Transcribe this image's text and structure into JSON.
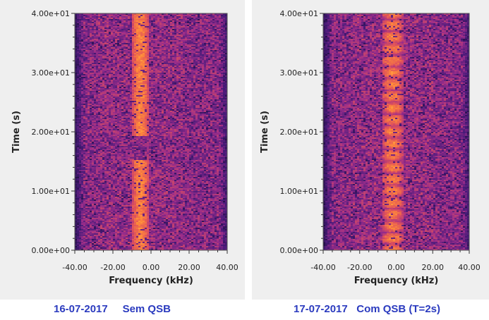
{
  "chart_data": [
    {
      "type": "heatmap",
      "xlabel": "Frequency (kHz)",
      "ylabel": "Time (s)",
      "xlim": [
        -40,
        40
      ],
      "ylim": [
        0,
        40
      ],
      "x_ticks": [
        "-40.00",
        "-20.00",
        "0.00",
        "20.00",
        "40.00"
      ],
      "y_ticks": [
        "0.00e+00",
        "1.00e+01",
        "2.00e+01",
        "3.00e+01",
        "4.00e+01"
      ],
      "signal": {
        "band_khz": [
          -10,
          -1
        ],
        "present_s": [
          [
            0,
            15.2
          ],
          [
            19.3,
            40
          ]
        ],
        "fading": "none"
      },
      "colormap": [
        "#1c0c3c",
        "#4a1b7a",
        "#9b2d8a",
        "#e0525a",
        "#ff8a3a",
        "#ffd060"
      ]
    },
    {
      "type": "heatmap",
      "xlabel": "Frequency (kHz)",
      "ylabel": "Time (s)",
      "xlim": [
        -40,
        40
      ],
      "ylim": [
        0,
        40
      ],
      "x_ticks": [
        "-40.00",
        "-20.00",
        "0.00",
        "20.00",
        "40.00"
      ],
      "y_ticks": [
        "0.00e+00",
        "1.00e+01",
        "2.00e+01",
        "3.00e+01",
        "4.00e+01"
      ],
      "signal": {
        "band_khz": [
          -8,
          4
        ],
        "present_s": [
          [
            0,
            40
          ]
        ],
        "fading": "periodic",
        "period_s": 2
      },
      "colormap": [
        "#1c0c3c",
        "#4a1b7a",
        "#9b2d8a",
        "#e0525a",
        "#ff8a3a",
        "#ffd060"
      ]
    }
  ],
  "captions": {
    "left": "16-07-2017     Sem QSB",
    "right": "17-07-2017   Com QSB (T=2s)"
  }
}
